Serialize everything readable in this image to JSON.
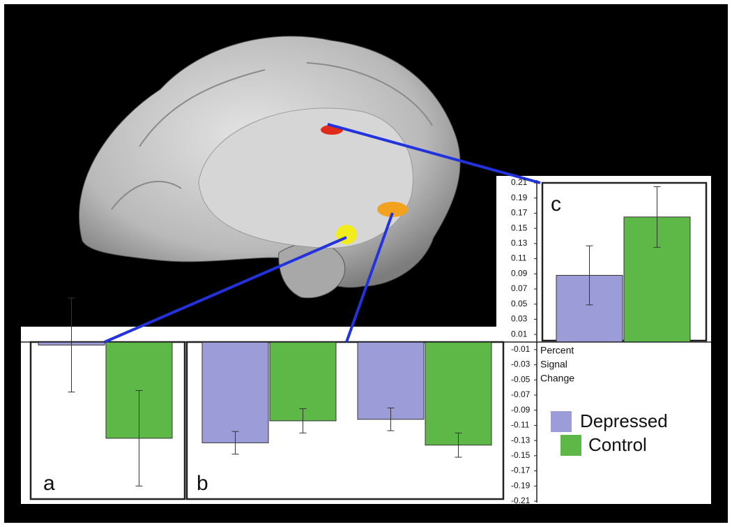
{
  "chart_data": {
    "type": "bar",
    "categories": [
      null,
      null,
      null,
      null
    ],
    "panel_labels": [
      "a",
      "b",
      "c"
    ],
    "y_label_lines": [
      "Percent",
      "Signal",
      "Change"
    ],
    "series": [
      {
        "name": "Depressed",
        "color": "#9c9cd8",
        "values": [
          -0.004,
          -0.133,
          -0.102,
          0.088
        ],
        "errors": [
          0.062,
          0.015,
          0.015,
          0.039
        ]
      },
      {
        "name": "Control",
        "color": "#5db848",
        "values": [
          -0.127,
          -0.104,
          -0.136,
          0.165
        ],
        "errors": [
          0.063,
          0.016,
          0.016,
          0.04
        ]
      }
    ],
    "ylim": [
      -0.21,
      0.21
    ],
    "yticks": [
      0.21,
      0.19,
      0.17,
      0.15,
      0.13,
      0.11,
      0.09,
      0.07,
      0.05,
      0.03,
      0.01,
      -0.01,
      -0.03,
      -0.05,
      -0.07,
      -0.09,
      -0.11,
      -0.13,
      -0.15,
      -0.17,
      -0.19,
      -0.21
    ]
  }
}
